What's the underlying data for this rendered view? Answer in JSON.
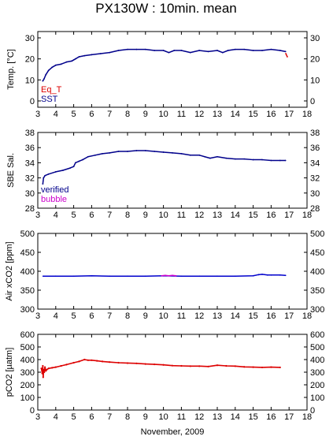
{
  "figure": {
    "title": "PX130W : 10min. mean",
    "xlabel": "November, 2009"
  },
  "chart_data": [
    {
      "type": "line",
      "ylabel": "Temp. [°C]",
      "xlim": [
        3,
        18
      ],
      "ylim": [
        -3,
        33
      ],
      "x_ticks": [
        3,
        4,
        5,
        6,
        7,
        8,
        9,
        10,
        11,
        12,
        13,
        14,
        15,
        16,
        17,
        18
      ],
      "y_ticks": [
        0,
        10,
        20,
        30
      ],
      "grid": false,
      "legend_position": "bottom-left",
      "series": [
        {
          "name": "Eq_T",
          "color": "#dd0000",
          "x": [
            16.82,
            16.9
          ],
          "y": [
            22.5,
            21.0
          ]
        },
        {
          "name": "SST",
          "color": "#00008b",
          "x": [
            3.28,
            3.35,
            3.45,
            3.6,
            3.8,
            4.0,
            4.3,
            4.6,
            4.9,
            5.0,
            5.1,
            5.3,
            5.6,
            6.0,
            6.5,
            7.0,
            7.5,
            8.0,
            8.5,
            9.0,
            9.5,
            10.0,
            10.3,
            10.6,
            11.0,
            11.5,
            12.0,
            12.5,
            13.0,
            13.3,
            13.6,
            14.0,
            14.5,
            15.0,
            15.5,
            16.0,
            16.5,
            16.8
          ],
          "y": [
            9.5,
            10.5,
            12.5,
            14.5,
            16.0,
            17.0,
            17.5,
            18.5,
            19.0,
            19.5,
            20.0,
            21.0,
            21.5,
            22.0,
            22.5,
            23.0,
            24.0,
            24.5,
            24.5,
            24.5,
            24.0,
            24.0,
            23.0,
            24.0,
            24.0,
            23.0,
            24.0,
            23.5,
            24.0,
            23.0,
            24.0,
            24.5,
            24.5,
            24.0,
            24.0,
            24.5,
            24.0,
            23.5
          ]
        }
      ]
    },
    {
      "type": "line",
      "ylabel": "SBE Sal.",
      "xlim": [
        3,
        18
      ],
      "ylim": [
        28,
        38
      ],
      "x_ticks": [
        3,
        4,
        5,
        6,
        7,
        8,
        9,
        10,
        11,
        12,
        13,
        14,
        15,
        16,
        17,
        18
      ],
      "y_ticks": [
        28,
        30,
        32,
        34,
        36,
        38
      ],
      "grid": false,
      "legend_position": "bottom-left",
      "series": [
        {
          "name": "verified",
          "color": "#00008b",
          "x": [
            3.28,
            3.32,
            3.4,
            3.6,
            4.0,
            4.4,
            4.8,
            5.0,
            5.1,
            5.3,
            5.5,
            5.8,
            6.2,
            6.6,
            7.0,
            7.5,
            8.0,
            8.5,
            9.0,
            9.5,
            10.0,
            10.5,
            11.0,
            11.5,
            12.0,
            12.3,
            12.6,
            13.0,
            13.5,
            14.0,
            14.5,
            15.0,
            15.5,
            16.0,
            16.5,
            16.8
          ],
          "y": [
            31.2,
            32.0,
            32.3,
            32.5,
            32.8,
            33.0,
            33.3,
            33.5,
            34.0,
            34.2,
            34.4,
            34.8,
            35.0,
            35.2,
            35.3,
            35.5,
            35.5,
            35.6,
            35.6,
            35.5,
            35.4,
            35.3,
            35.2,
            35.0,
            35.0,
            34.8,
            34.6,
            34.8,
            34.6,
            34.5,
            34.5,
            34.4,
            34.4,
            34.3,
            34.3,
            34.3
          ]
        },
        {
          "name": "bubble",
          "color": "#cc00cc",
          "x": [],
          "y": []
        }
      ]
    },
    {
      "type": "line",
      "ylabel": "Air xCO2 [ppm]",
      "xlim": [
        3,
        18
      ],
      "ylim": [
        300,
        500
      ],
      "x_ticks": [
        3,
        4,
        5,
        6,
        7,
        8,
        9,
        10,
        11,
        12,
        13,
        14,
        15,
        16,
        17,
        18
      ],
      "y_ticks": [
        300,
        350,
        400,
        450,
        500
      ],
      "grid": false,
      "series": [
        {
          "name": "",
          "color": "#0000cc",
          "x": [
            3.3,
            4.0,
            5.0,
            6.0,
            7.0,
            8.0,
            9.0,
            10.0,
            11.0,
            12.0,
            13.0,
            14.0,
            15.0,
            15.3,
            15.5,
            15.8,
            16.0,
            16.5,
            16.8
          ],
          "y": [
            387,
            387,
            387,
            388,
            387,
            387,
            387,
            388,
            387,
            387,
            387,
            387,
            388,
            391,
            392,
            390,
            390,
            390,
            389
          ]
        },
        {
          "name": "",
          "color": "#cc00cc",
          "x": [
            9.9,
            10.1,
            10.3,
            10.5,
            10.7
          ],
          "y": [
            388,
            389,
            388,
            389,
            388
          ]
        }
      ]
    },
    {
      "type": "scatter",
      "ylabel": "pCO2 [µatm]",
      "xlim": [
        3,
        18
      ],
      "ylim": [
        0,
        600
      ],
      "x_ticks": [
        3,
        4,
        5,
        6,
        7,
        8,
        9,
        10,
        11,
        12,
        13,
        14,
        15,
        16,
        17,
        18
      ],
      "y_ticks": [
        0,
        100,
        200,
        300,
        400,
        500,
        600
      ],
      "grid": false,
      "series": [
        {
          "name": "",
          "color": "#dd0000",
          "x": [
            3.2,
            3.25,
            3.28,
            3.3,
            3.33,
            3.36,
            3.4,
            3.45,
            3.5,
            3.6,
            3.8,
            4.0,
            4.3,
            4.6,
            5.0,
            5.3,
            5.6,
            5.8,
            6.0,
            6.3,
            6.6,
            7.0,
            7.5,
            8.0,
            8.5,
            9.0,
            9.5,
            10.0,
            10.5,
            11.0,
            11.5,
            12.0,
            12.5,
            13.0,
            13.5,
            14.0,
            14.5,
            15.0,
            15.5,
            16.0,
            16.5
          ],
          "y": [
            330,
            290,
            350,
            260,
            320,
            300,
            340,
            310,
            320,
            330,
            335,
            340,
            350,
            360,
            375,
            385,
            400,
            395,
            395,
            390,
            385,
            380,
            375,
            372,
            370,
            365,
            362,
            358,
            352,
            350,
            348,
            348,
            345,
            355,
            350,
            348,
            342,
            340,
            338,
            340,
            338
          ]
        }
      ]
    }
  ]
}
